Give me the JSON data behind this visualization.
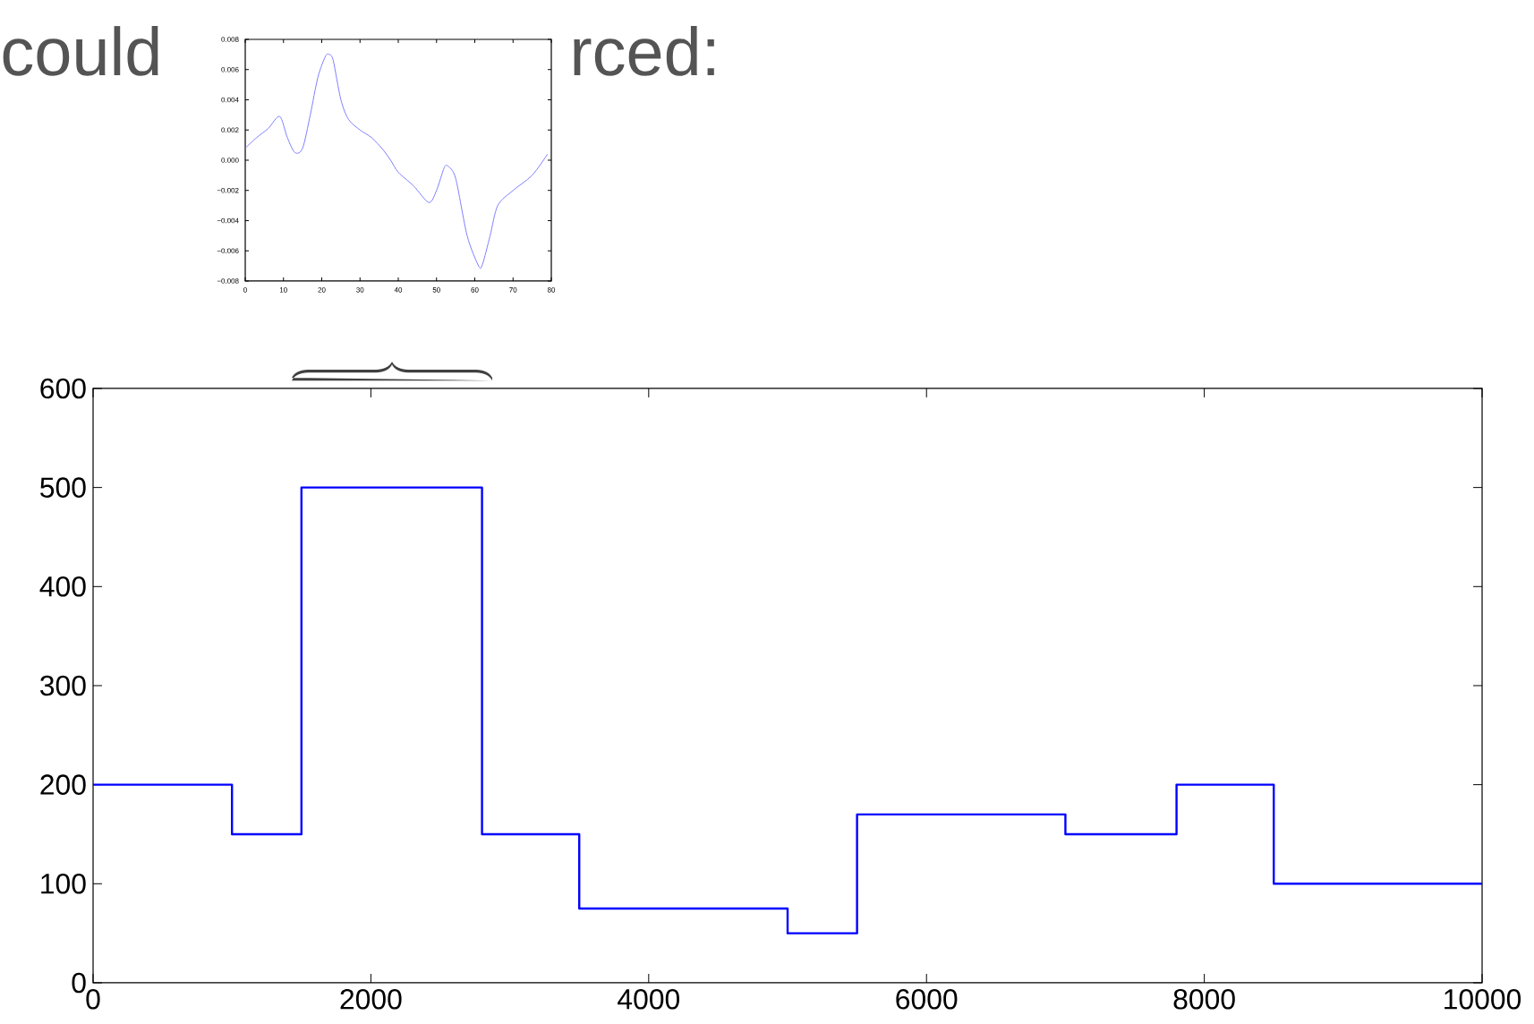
{
  "chart_data": [
    {
      "type": "line",
      "color": "#7f7fff",
      "annotations": [
        "could",
        "rced:"
      ],
      "x": [
        0,
        3,
        6,
        9,
        11,
        13,
        15,
        17,
        19,
        21,
        22,
        23,
        25,
        27,
        30,
        33,
        36,
        38,
        40,
        44,
        48,
        50,
        52,
        53,
        55,
        58,
        61,
        62,
        64,
        66,
        70,
        75,
        79
      ],
      "values": [
        0.0008,
        0.0015,
        0.0021,
        0.0029,
        0.0015,
        0.0005,
        0.0008,
        0.003,
        0.0055,
        0.0069,
        0.007,
        0.0066,
        0.004,
        0.0027,
        0.002,
        0.0015,
        0.0007,
        0.0,
        -0.0008,
        -0.0017,
        -0.0028,
        -0.002,
        -0.0005,
        -0.0004,
        -0.0012,
        -0.005,
        -0.007,
        -0.0069,
        -0.005,
        -0.003,
        -0.002,
        -0.001,
        0.0004
      ],
      "xlim": [
        0,
        80
      ],
      "ylim": [
        -0.008,
        0.008
      ],
      "xticks": [
        0,
        10,
        20,
        30,
        40,
        50,
        60,
        70,
        80
      ],
      "yticks": [
        {
          "value": -0.008,
          "label": "−0.008"
        },
        {
          "value": -0.006,
          "label": "−0.006"
        },
        {
          "value": -0.004,
          "label": "−0.004"
        },
        {
          "value": -0.002,
          "label": "−0.002"
        },
        {
          "value": 0,
          "label": "0.000"
        },
        {
          "value": 0.002,
          "label": "0.002"
        },
        {
          "value": 0.004,
          "label": "0.004"
        },
        {
          "value": 0.006,
          "label": "0.006"
        },
        {
          "value": 0.008,
          "label": "0.008"
        }
      ]
    },
    {
      "type": "step",
      "color": "#0000ff",
      "x": [
        0,
        1000,
        1500,
        2800,
        3500,
        5000,
        5500,
        7000,
        7800,
        8500,
        10000
      ],
      "values": [
        200,
        150,
        500,
        150,
        75,
        50,
        170,
        150,
        200,
        100,
        100
      ],
      "xlim": [
        0,
        10000
      ],
      "ylim": [
        0,
        600
      ],
      "xticks": [
        0,
        2000,
        4000,
        6000,
        8000,
        10000
      ],
      "yticks": [
        0,
        100,
        200,
        300,
        400,
        500,
        600
      ]
    }
  ]
}
